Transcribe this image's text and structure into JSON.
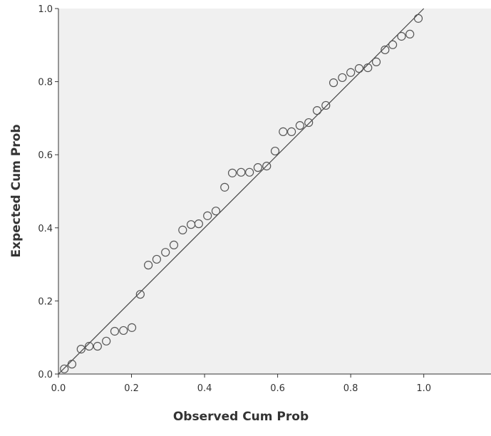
{
  "chart_data": {
    "type": "scatter",
    "xlabel": "Observed Cum Prob",
    "ylabel": "Expected Cum Prob",
    "x": [
      0.016,
      0.037,
      0.062,
      0.084,
      0.107,
      0.131,
      0.154,
      0.178,
      0.201,
      0.224,
      0.246,
      0.269,
      0.293,
      0.316,
      0.34,
      0.363,
      0.384,
      0.408,
      0.431,
      0.455,
      0.476,
      0.5,
      0.523,
      0.546,
      0.57,
      0.593,
      0.615,
      0.638,
      0.661,
      0.685,
      0.708,
      0.732,
      0.753,
      0.777,
      0.8,
      0.823,
      0.847,
      0.87,
      0.894,
      0.915,
      0.939,
      0.962,
      0.985
    ],
    "values": [
      0.014,
      0.027,
      0.068,
      0.076,
      0.076,
      0.09,
      0.117,
      0.119,
      0.127,
      0.218,
      0.298,
      0.314,
      0.333,
      0.353,
      0.394,
      0.409,
      0.411,
      0.433,
      0.446,
      0.511,
      0.55,
      0.552,
      0.552,
      0.565,
      0.569,
      0.61,
      0.663,
      0.663,
      0.68,
      0.688,
      0.721,
      0.735,
      0.797,
      0.811,
      0.825,
      0.836,
      0.838,
      0.854,
      0.887,
      0.901,
      0.924,
      0.93,
      0.973
    ],
    "xlim": [
      0,
      1.184
    ],
    "ylim": [
      0,
      1
    ],
    "xticks": [
      {
        "value": 0,
        "label": "0.0"
      },
      0.2,
      0.4,
      0.6,
      0.8,
      {
        "value": 1,
        "label": "1.0"
      }
    ],
    "yticks": [
      {
        "value": 0,
        "label": "0.0"
      },
      0.2,
      0.4,
      0.6,
      0.8,
      {
        "value": 1,
        "label": "1.0"
      }
    ],
    "color": "#555555"
  }
}
